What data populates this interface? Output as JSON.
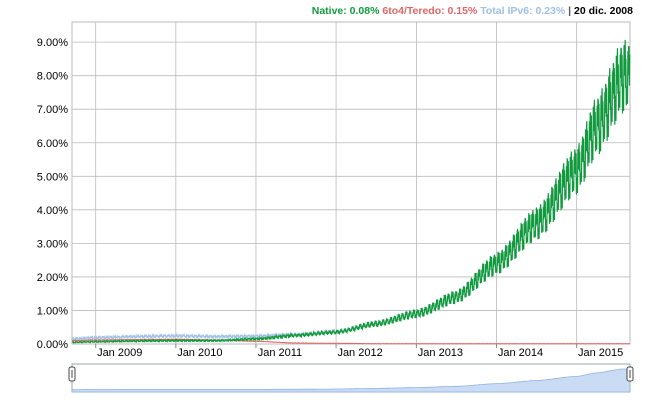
{
  "legend": {
    "native_label": "Native: 0.08%",
    "teredo_label": "6to4/Teredo: 0.15%",
    "total_label": "Total IPv6: 0.23%",
    "separator": "|",
    "date_label": "20 dic. 2008"
  },
  "colors": {
    "native": "#109a3a",
    "teredo": "#e06666",
    "total": "#9fc0e8",
    "grid": "#bbbbbb",
    "navigator_fill": "#c9dcf4"
  },
  "chart_data": {
    "type": "line",
    "title": "",
    "xlabel": "",
    "ylabel": "",
    "y_tick_labels": [
      "0.00%",
      "1.00%",
      "2.00%",
      "3.00%",
      "4.00%",
      "5.00%",
      "6.00%",
      "7.00%",
      "8.00%",
      "9.00%"
    ],
    "x_tick_labels": [
      "Jan 2009",
      "Jan 2010",
      "Jan 2011",
      "Jan 2012",
      "Jan 2013",
      "Jan 2014",
      "Jan 2015"
    ],
    "ylim": [
      0,
      9.6
    ],
    "grid": true,
    "legend_position": "top-right",
    "x": [
      "2008-09",
      "2009-01",
      "2009-07",
      "2010-01",
      "2010-07",
      "2011-01",
      "2011-07",
      "2012-01",
      "2012-07",
      "2013-01",
      "2013-07",
      "2014-01",
      "2014-07",
      "2015-01",
      "2015-04",
      "2015-08"
    ],
    "series": [
      {
        "name": "Native",
        "values": [
          0.05,
          0.07,
          0.09,
          0.1,
          0.1,
          0.15,
          0.25,
          0.35,
          0.6,
          0.9,
          1.4,
          2.4,
          3.6,
          5.2,
          6.5,
          8.0
        ]
      },
      {
        "name": "6to4/Teredo",
        "values": [
          0.1,
          0.12,
          0.13,
          0.14,
          0.12,
          0.08,
          0.03,
          0.02,
          0.01,
          0.01,
          0.01,
          0.01,
          0.01,
          0.01,
          0.01,
          0.01
        ]
      },
      {
        "name": "Total IPv6",
        "values": [
          0.15,
          0.19,
          0.22,
          0.24,
          0.22,
          0.23,
          0.28,
          0.37,
          0.61,
          0.91,
          1.41,
          2.41,
          3.61,
          5.21,
          6.51,
          8.01
        ]
      }
    ]
  }
}
